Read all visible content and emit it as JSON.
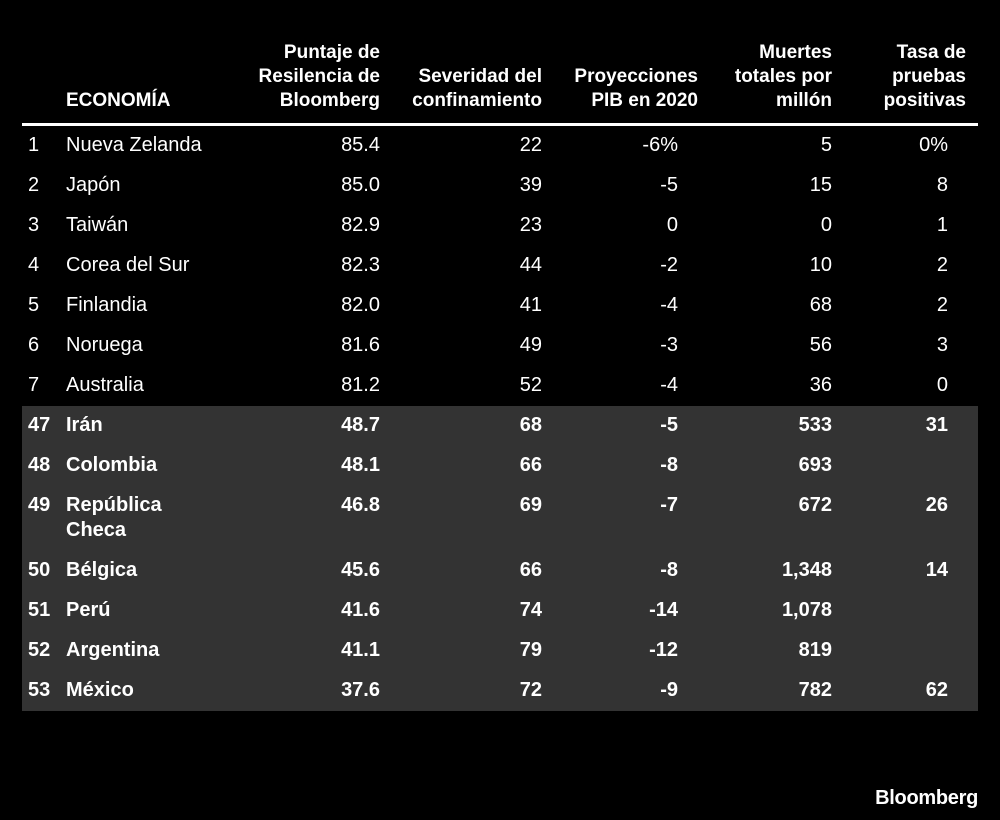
{
  "chart_data": {
    "type": "table",
    "columns": [
      "ECONOMÍA",
      "Puntaje de Resilencia de Bloomberg",
      "Severidad del confinamiento",
      "Proyecciones PIB en 2020",
      "Muertes totales por millón",
      "Tasa de pruebas positivas"
    ],
    "rows": [
      {
        "rank": "1",
        "economy": "Nueva Zelanda",
        "score": "85.4",
        "severity": "22",
        "gdp": "-6%",
        "deaths": "5",
        "positive_rate": "0%",
        "group": "top"
      },
      {
        "rank": "2",
        "economy": "Japón",
        "score": "85.0",
        "severity": "39",
        "gdp": "-5",
        "deaths": "15",
        "positive_rate": "8",
        "group": "top"
      },
      {
        "rank": "3",
        "economy": "Taiwán",
        "score": "82.9",
        "severity": "23",
        "gdp": "0",
        "deaths": "0",
        "positive_rate": "1",
        "group": "top"
      },
      {
        "rank": "4",
        "economy": "Corea del Sur",
        "score": "82.3",
        "severity": "44",
        "gdp": "-2",
        "deaths": "10",
        "positive_rate": "2",
        "group": "top"
      },
      {
        "rank": "5",
        "economy": "Finlandia",
        "score": "82.0",
        "severity": "41",
        "gdp": "-4",
        "deaths": "68",
        "positive_rate": "2",
        "group": "top"
      },
      {
        "rank": "6",
        "economy": "Noruega",
        "score": "81.6",
        "severity": "49",
        "gdp": "-3",
        "deaths": "56",
        "positive_rate": "3",
        "group": "top"
      },
      {
        "rank": "7",
        "economy": "Australia",
        "score": "81.2",
        "severity": "52",
        "gdp": "-4",
        "deaths": "36",
        "positive_rate": "0",
        "group": "top"
      },
      {
        "rank": "47",
        "economy": "Irán",
        "score": "48.7",
        "severity": "68",
        "gdp": "-5",
        "deaths": "533",
        "positive_rate": "31",
        "group": "bottom"
      },
      {
        "rank": "48",
        "economy": "Colombia",
        "score": "48.1",
        "severity": "66",
        "gdp": "-8",
        "deaths": "693",
        "positive_rate": "",
        "group": "bottom"
      },
      {
        "rank": "49",
        "economy": "República Checa",
        "score": "46.8",
        "severity": "69",
        "gdp": "-7",
        "deaths": "672",
        "positive_rate": "26",
        "group": "bottom"
      },
      {
        "rank": "50",
        "economy": "Bélgica",
        "score": "45.6",
        "severity": "66",
        "gdp": "-8",
        "deaths": "1,348",
        "positive_rate": "14",
        "group": "bottom"
      },
      {
        "rank": "51",
        "economy": "Perú",
        "score": "41.6",
        "severity": "74",
        "gdp": "-14",
        "deaths": "1,078",
        "positive_rate": "",
        "group": "bottom"
      },
      {
        "rank": "52",
        "economy": "Argentina",
        "score": "41.1",
        "severity": "79",
        "gdp": "-12",
        "deaths": "819",
        "positive_rate": "",
        "group": "bottom"
      },
      {
        "rank": "53",
        "economy": "México",
        "score": "37.6",
        "severity": "72",
        "gdp": "-9",
        "deaths": "782",
        "positive_rate": "62",
        "group": "bottom"
      }
    ],
    "colors": {
      "background": "#000000",
      "text": "#ffffff",
      "bottom_group_fill": "#333333"
    }
  },
  "brand": "Bloomberg"
}
